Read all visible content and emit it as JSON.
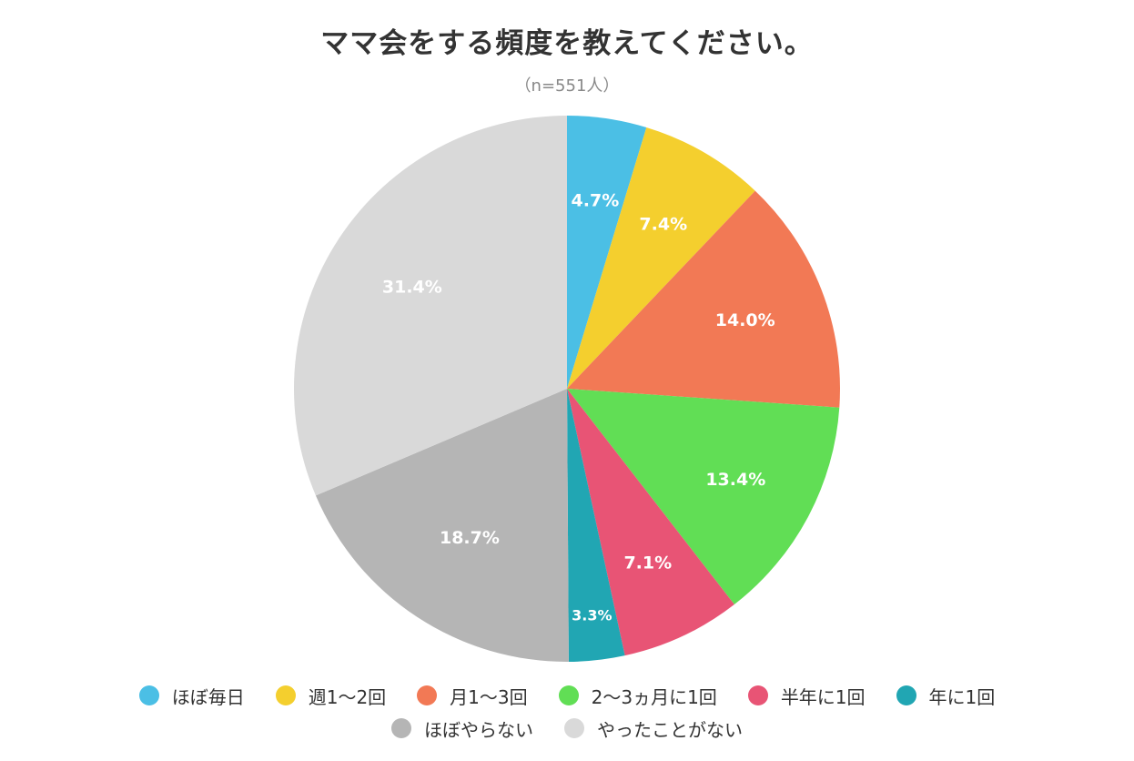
{
  "chart_data": {
    "type": "pie",
    "title": "ママ会をする頻度を教えてください。",
    "subtitle": "（n=551人）",
    "legend_position": "bottom",
    "slices": [
      {
        "label": "ほぼ毎日",
        "value": 4.7,
        "display": "4.7%",
        "color": "#4bbfe5"
      },
      {
        "label": "週1〜2回",
        "value": 7.4,
        "display": "7.4%",
        "color": "#f4cf2e"
      },
      {
        "label": "月1〜3回",
        "value": 14.0,
        "display": "14.0%",
        "color": "#f27955"
      },
      {
        "label": "2〜3ヵ月に1回",
        "value": 13.4,
        "display": "13.4%",
        "color": "#61de55"
      },
      {
        "label": "半年に1回",
        "value": 7.1,
        "display": "7.1%",
        "color": "#e85475"
      },
      {
        "label": "年に1回",
        "value": 3.3,
        "display": "3.3%",
        "color": "#21a6b3"
      },
      {
        "label": "ほぼやらない",
        "value": 18.7,
        "display": "18.7%",
        "color": "#b5b5b5"
      },
      {
        "label": "やったことがない",
        "value": 31.4,
        "display": "31.4%",
        "color": "#d9d9d9"
      }
    ]
  }
}
